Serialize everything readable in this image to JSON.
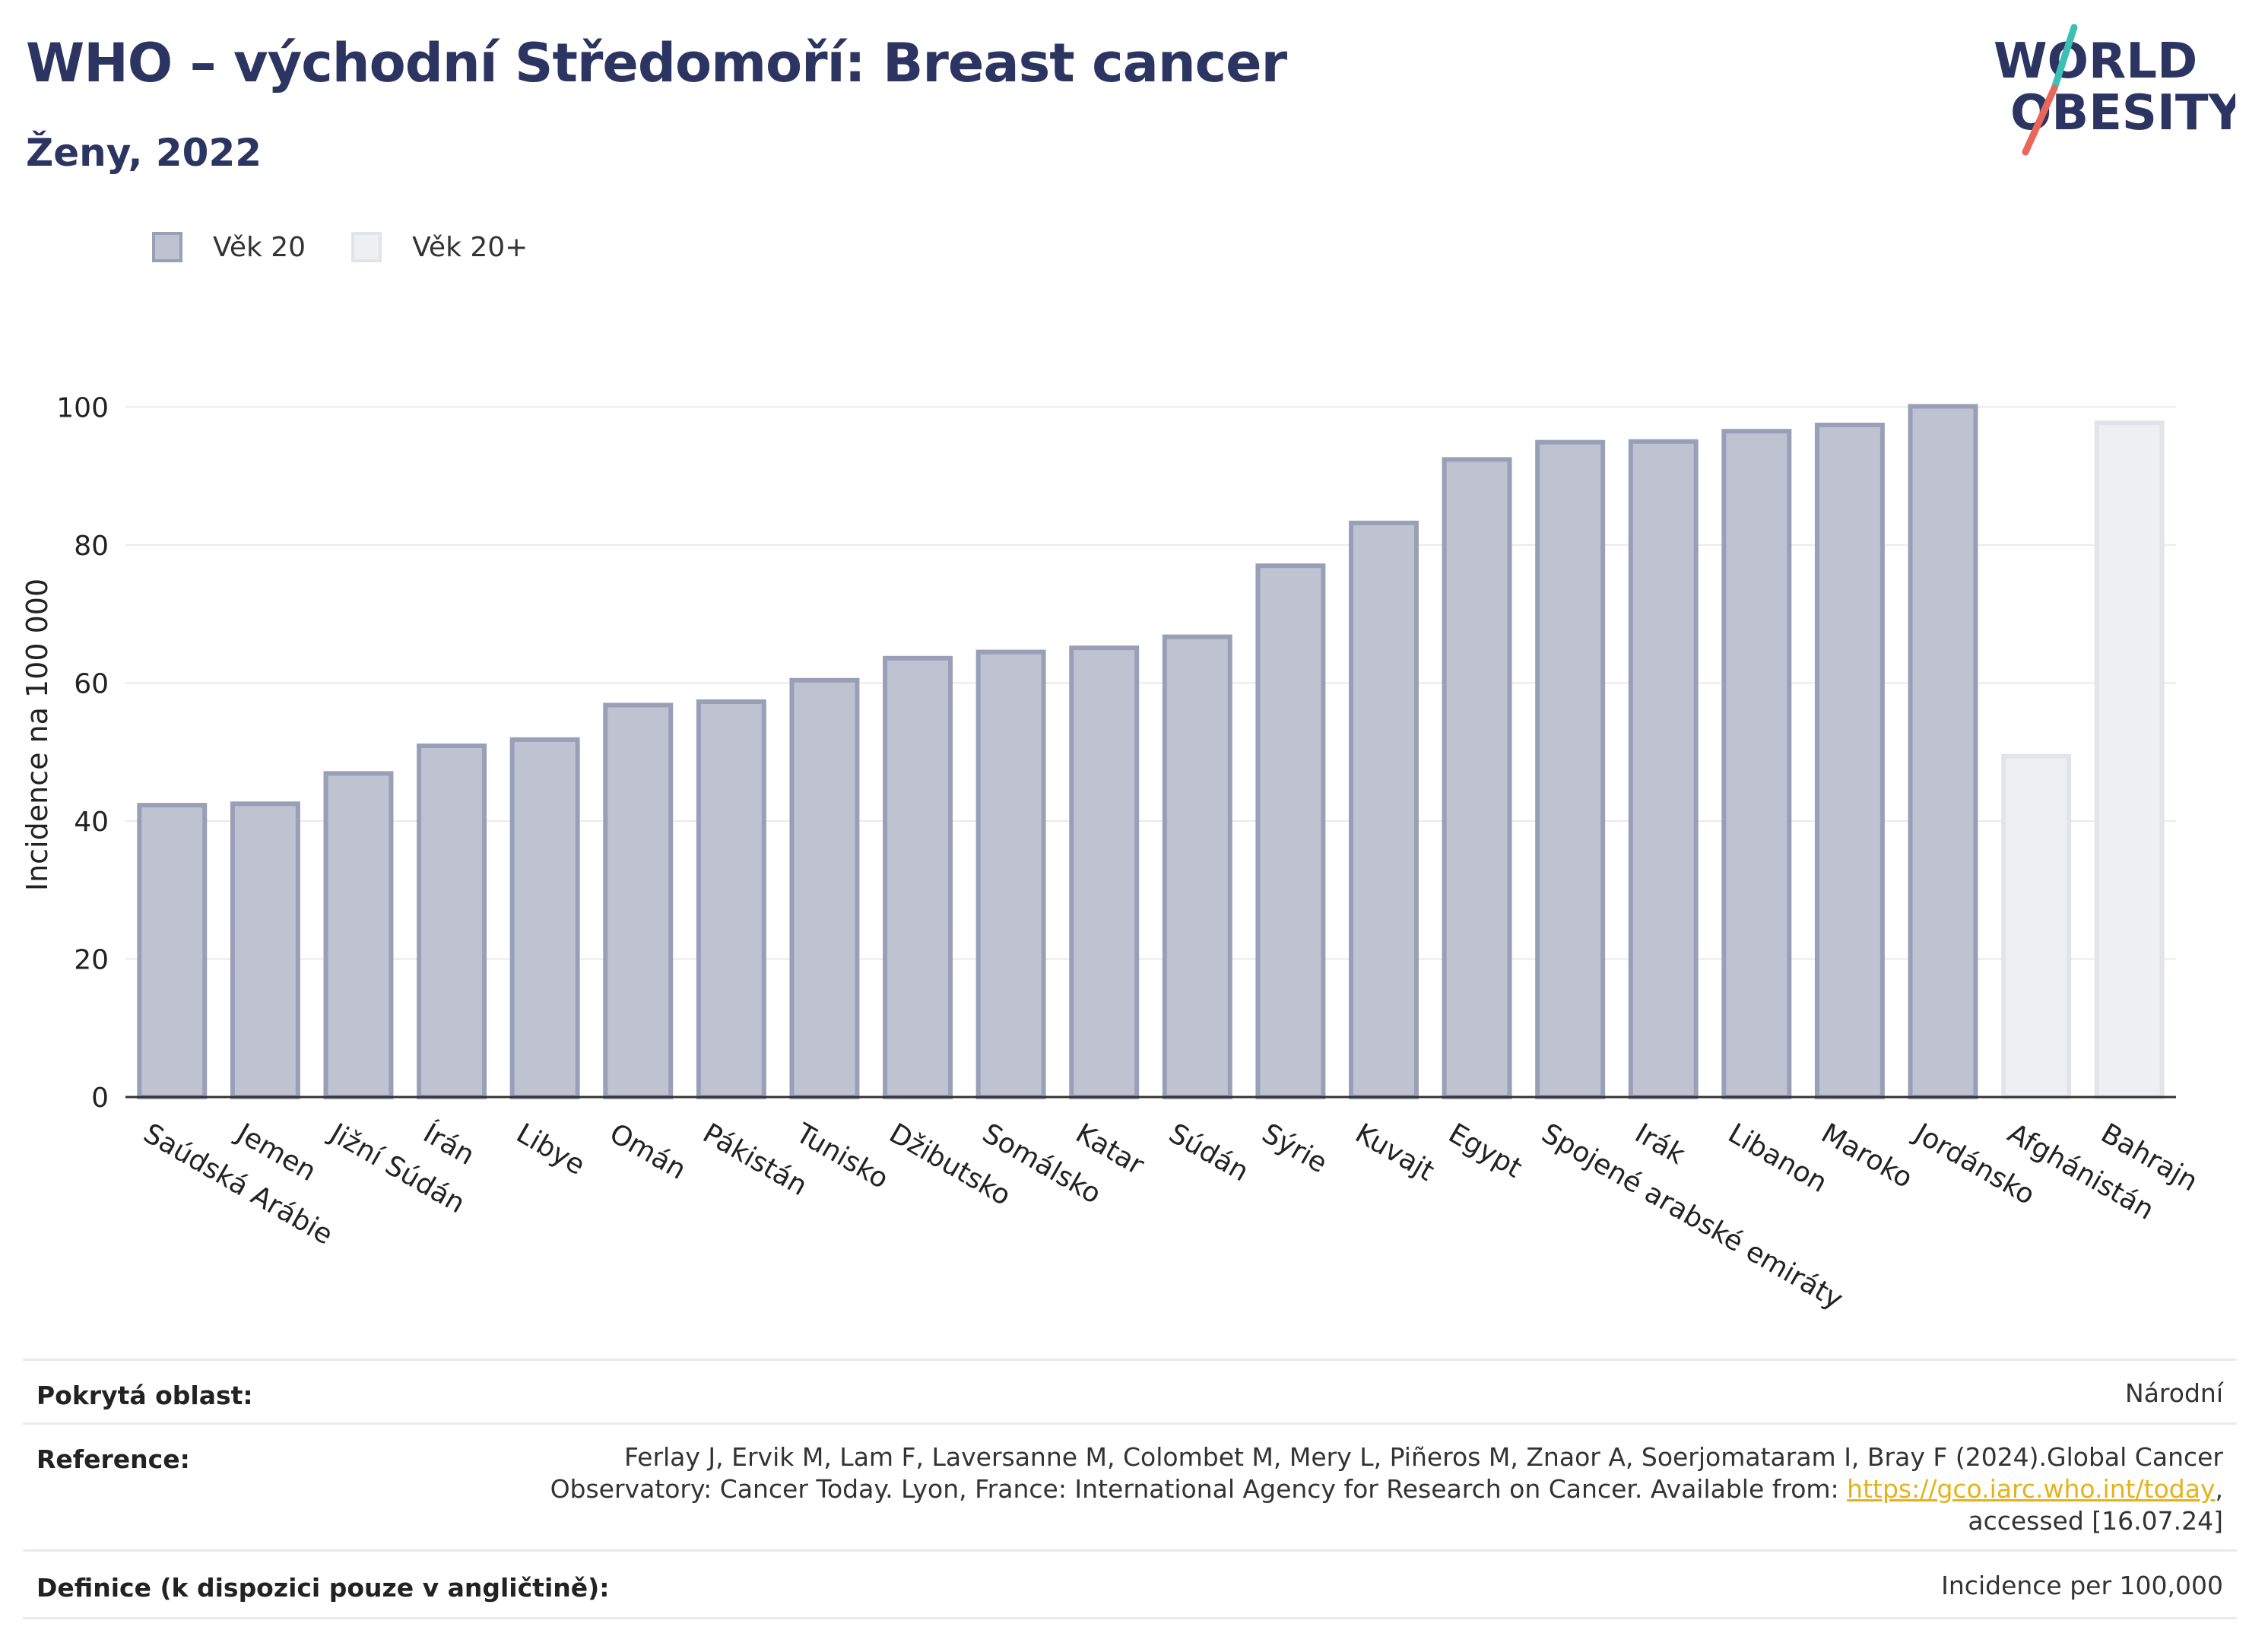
{
  "header": {
    "title": "WHO – východní Středomoří: Breast cancer",
    "subtitle": "Ženy, 2022"
  },
  "logo": {
    "line1": "WORLD",
    "line2": "OBESITY",
    "accent_teal": "#3cbfb4",
    "accent_coral": "#e8675a",
    "text_color": "#2c3561"
  },
  "legend": [
    {
      "label": "Věk 20",
      "fill": "#bfc2d1",
      "stroke": "#9a9fb8"
    },
    {
      "label": "Věk 20+",
      "fill": "#eeeff3",
      "stroke": "#e2e4ea"
    }
  ],
  "chart_data": {
    "type": "bar",
    "title": "WHO – východní Středomoří: Breast cancer",
    "subtitle": "Ženy, 2022",
    "xlabel": "",
    "ylabel": "Incidence na 100 000",
    "ylim": [
      0,
      105
    ],
    "yticks": [
      0,
      20,
      40,
      60,
      80,
      100
    ],
    "grid": true,
    "legend_position": "top-left",
    "categories": [
      "Saúdská Arábie",
      "Jemen",
      "Jižní Súdán",
      "Írán",
      "Libye",
      "Omán",
      "Pákistán",
      "Tunisko",
      "Džibutsko",
      "Somálsko",
      "Katar",
      "Súdán",
      "Sýrie",
      "Kuvajt",
      "Egypt",
      "Spojené arabské emiráty",
      "Irák",
      "Libanon",
      "Maroko",
      "Jordánsko",
      "Afghánistán",
      "Bahrajn"
    ],
    "series": [
      {
        "name": "Věk 20",
        "values": [
          42.3,
          42.5,
          46.9,
          50.9,
          51.8,
          56.8,
          57.3,
          60.4,
          63.6,
          64.5,
          65.1,
          66.7,
          77.0,
          83.2,
          92.4,
          94.9,
          95.0,
          96.5,
          97.4,
          100.1,
          null,
          null
        ]
      },
      {
        "name": "Věk 20+",
        "values": [
          null,
          null,
          null,
          null,
          null,
          null,
          null,
          null,
          null,
          null,
          null,
          null,
          null,
          null,
          null,
          null,
          null,
          null,
          null,
          null,
          49.4,
          97.7
        ]
      }
    ]
  },
  "info": {
    "coverage_label": "Pokrytá oblast:",
    "coverage_value": "Národní",
    "reference_label": "Reference:",
    "reference_line1": "Ferlay J, Ervik M, Lam F, Laversanne M, Colombet M, Mery L, Piñeros M, Znaor A, Soerjomataram I, Bray F (2024).Global Cancer",
    "reference_line2_pre": "Observatory: Cancer Today. Lyon, France: International Agency for Research on Cancer. Available from: ",
    "reference_link": "https://gco.iarc.who.int/today",
    "reference_line2_post": ",",
    "reference_line3": "accessed [16.07.24]",
    "definition_label": "Definice (k dispozici pouze v angličtině):",
    "definition_value": "Incidence per 100,000"
  }
}
